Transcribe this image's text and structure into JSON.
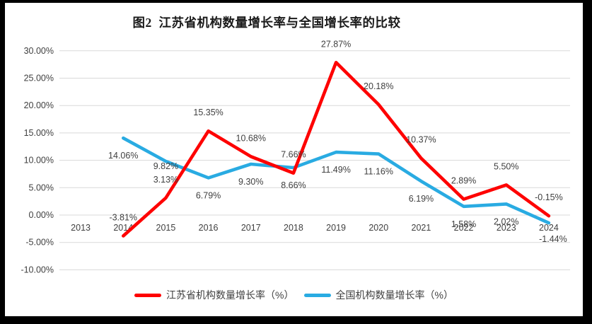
{
  "colors": {
    "jiangsu_red": "#fe0000",
    "national_blue": "#29abe2",
    "grid": "#d9d9d9",
    "axis_text": "#404040",
    "label_text": "#3f3f3f",
    "title_text": "#1a1a1a",
    "frame_black": "#000000",
    "canvas_white": "#ffffff"
  },
  "chart_data": {
    "type": "line",
    "title": "图2  江苏省机构数量增长率与全国增长率的比较",
    "categories": [
      "2013",
      "2014",
      "2015",
      "2016",
      "2017",
      "2018",
      "2019",
      "2020",
      "2021",
      "2022",
      "2023",
      "2024"
    ],
    "series": [
      {
        "name": "江苏省机构数量增长率（%）",
        "color": "#fe0000",
        "label_position": "above",
        "values": [
          null,
          -3.81,
          3.13,
          15.35,
          10.68,
          7.66,
          27.87,
          20.18,
          10.37,
          2.89,
          5.5,
          -0.15
        ],
        "labels": [
          null,
          "-3.81%",
          "3.13%",
          "15.35%",
          "10.68%",
          "7.66%",
          "27.87%",
          "20.18%",
          "10.37%",
          "2.89%",
          "5.50%",
          "-0.15%"
        ]
      },
      {
        "name": "全国机构数量增长率（%）",
        "color": "#29abe2",
        "label_position": "below",
        "values": [
          null,
          14.06,
          9.82,
          6.79,
          9.3,
          8.66,
          11.49,
          11.16,
          6.19,
          1.58,
          2.02,
          -1.44
        ],
        "labels": [
          null,
          "14.06%",
          "9.82%",
          "6.79%",
          "9.30%",
          "8.66%",
          "11.49%",
          "11.16%",
          "6.19%",
          "1.58%",
          "2.02%",
          "-1.44%"
        ]
      }
    ],
    "ylim": [
      -10,
      30
    ],
    "y_tick_values": [
      30,
      25,
      20,
      15,
      10,
      5,
      0,
      -5,
      -10
    ],
    "y_tick_labels": [
      "30.00%",
      "25.00%",
      "20.00%",
      "15.00%",
      "10.00%",
      "5.00%",
      "0.00%",
      "-5.00%",
      "-10.00%"
    ],
    "grid": true,
    "legend_position": "bottom"
  }
}
